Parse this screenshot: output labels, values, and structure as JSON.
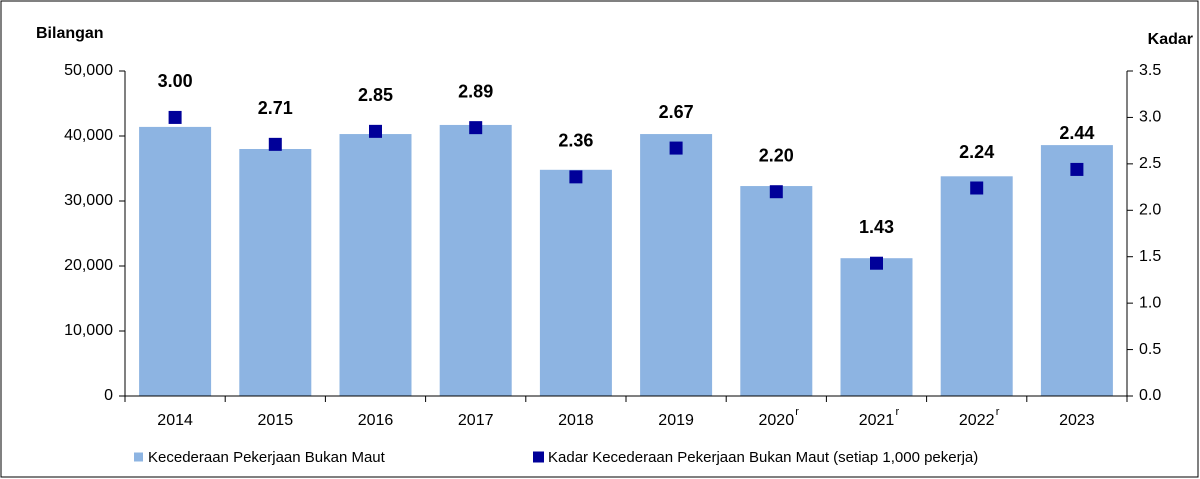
{
  "chart_data": {
    "type": "bar_marker",
    "y_label": "Bilangan",
    "y2_label": "Kadar",
    "categories": [
      "2014",
      "2015",
      "2016",
      "2017",
      "2018",
      "2019",
      "2020",
      "2021",
      "2022",
      "2023"
    ],
    "category_notes": [
      null,
      null,
      null,
      null,
      null,
      null,
      "r",
      "r",
      "r",
      null
    ],
    "series": [
      {
        "name": "Kecederaan Pekerjaan Bukan Maut",
        "color": "#8db4e2",
        "type": "bar",
        "values": [
          41400,
          38000,
          40300,
          41700,
          34800,
          40300,
          32300,
          21200,
          33800,
          38600
        ]
      },
      {
        "name": "Kadar Kecederaan Pekerjaan Bukan Maut (setiap 1,000 pekerja)",
        "color": "#000099",
        "type": "marker",
        "axis": "y2",
        "values": [
          3.0,
          2.71,
          2.85,
          2.89,
          2.36,
          2.67,
          2.2,
          1.43,
          2.24,
          2.44
        ],
        "value_labels": [
          "3.00",
          "2.71",
          "2.85",
          "2.89",
          "2.36",
          "2.67",
          "2.20",
          "1.43",
          "2.24",
          "2.44"
        ]
      }
    ],
    "ylim": [
      0,
      50000
    ],
    "yticks": [
      0,
      {
        "value": 10000,
        "label": "10,000"
      },
      {
        "value": 20000,
        "label": "20,000"
      },
      {
        "value": 30000,
        "label": "30,000"
      },
      {
        "value": 40000,
        "label": "40,000"
      },
      {
        "value": 50000,
        "label": "50,000"
      }
    ],
    "y2lim": [
      0,
      3.5
    ],
    "y2ticks": [
      {
        "value": 0,
        "label": "0.0"
      },
      0.5,
      {
        "value": 1,
        "label": "1.0"
      },
      1.5,
      {
        "value": 2,
        "label": "2.0"
      },
      2.5,
      {
        "value": 3,
        "label": "3.0"
      },
      3.5
    ],
    "legend": "bottom"
  }
}
